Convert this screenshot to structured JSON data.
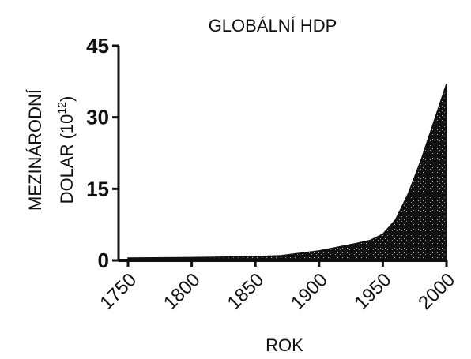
{
  "chart_data": {
    "type": "area",
    "title": "GLOBÁLNÍ HDP",
    "x_label": "ROK",
    "y_label_line1": "MEZINÁRODNÍ",
    "y_label_line2": "DOLAR (10",
    "y_label_exponent": "12",
    "y_label_close": ")",
    "x": [
      1750,
      1800,
      1850,
      1870,
      1900,
      1913,
      1930,
      1940,
      1950,
      1960,
      1970,
      1980,
      1990,
      2000
    ],
    "values": [
      0.5,
      0.6,
      0.8,
      1.0,
      2.0,
      2.7,
      3.6,
      4.2,
      5.5,
      8.5,
      14,
      21,
      29,
      37
    ],
    "color": "#111111",
    "xlim": [
      1750,
      2000
    ],
    "xticks": [
      1750,
      1800,
      1850,
      1900,
      1950,
      2000
    ],
    "ylim": [
      0,
      45
    ],
    "yticks": [
      0,
      15,
      30,
      45
    ]
  }
}
